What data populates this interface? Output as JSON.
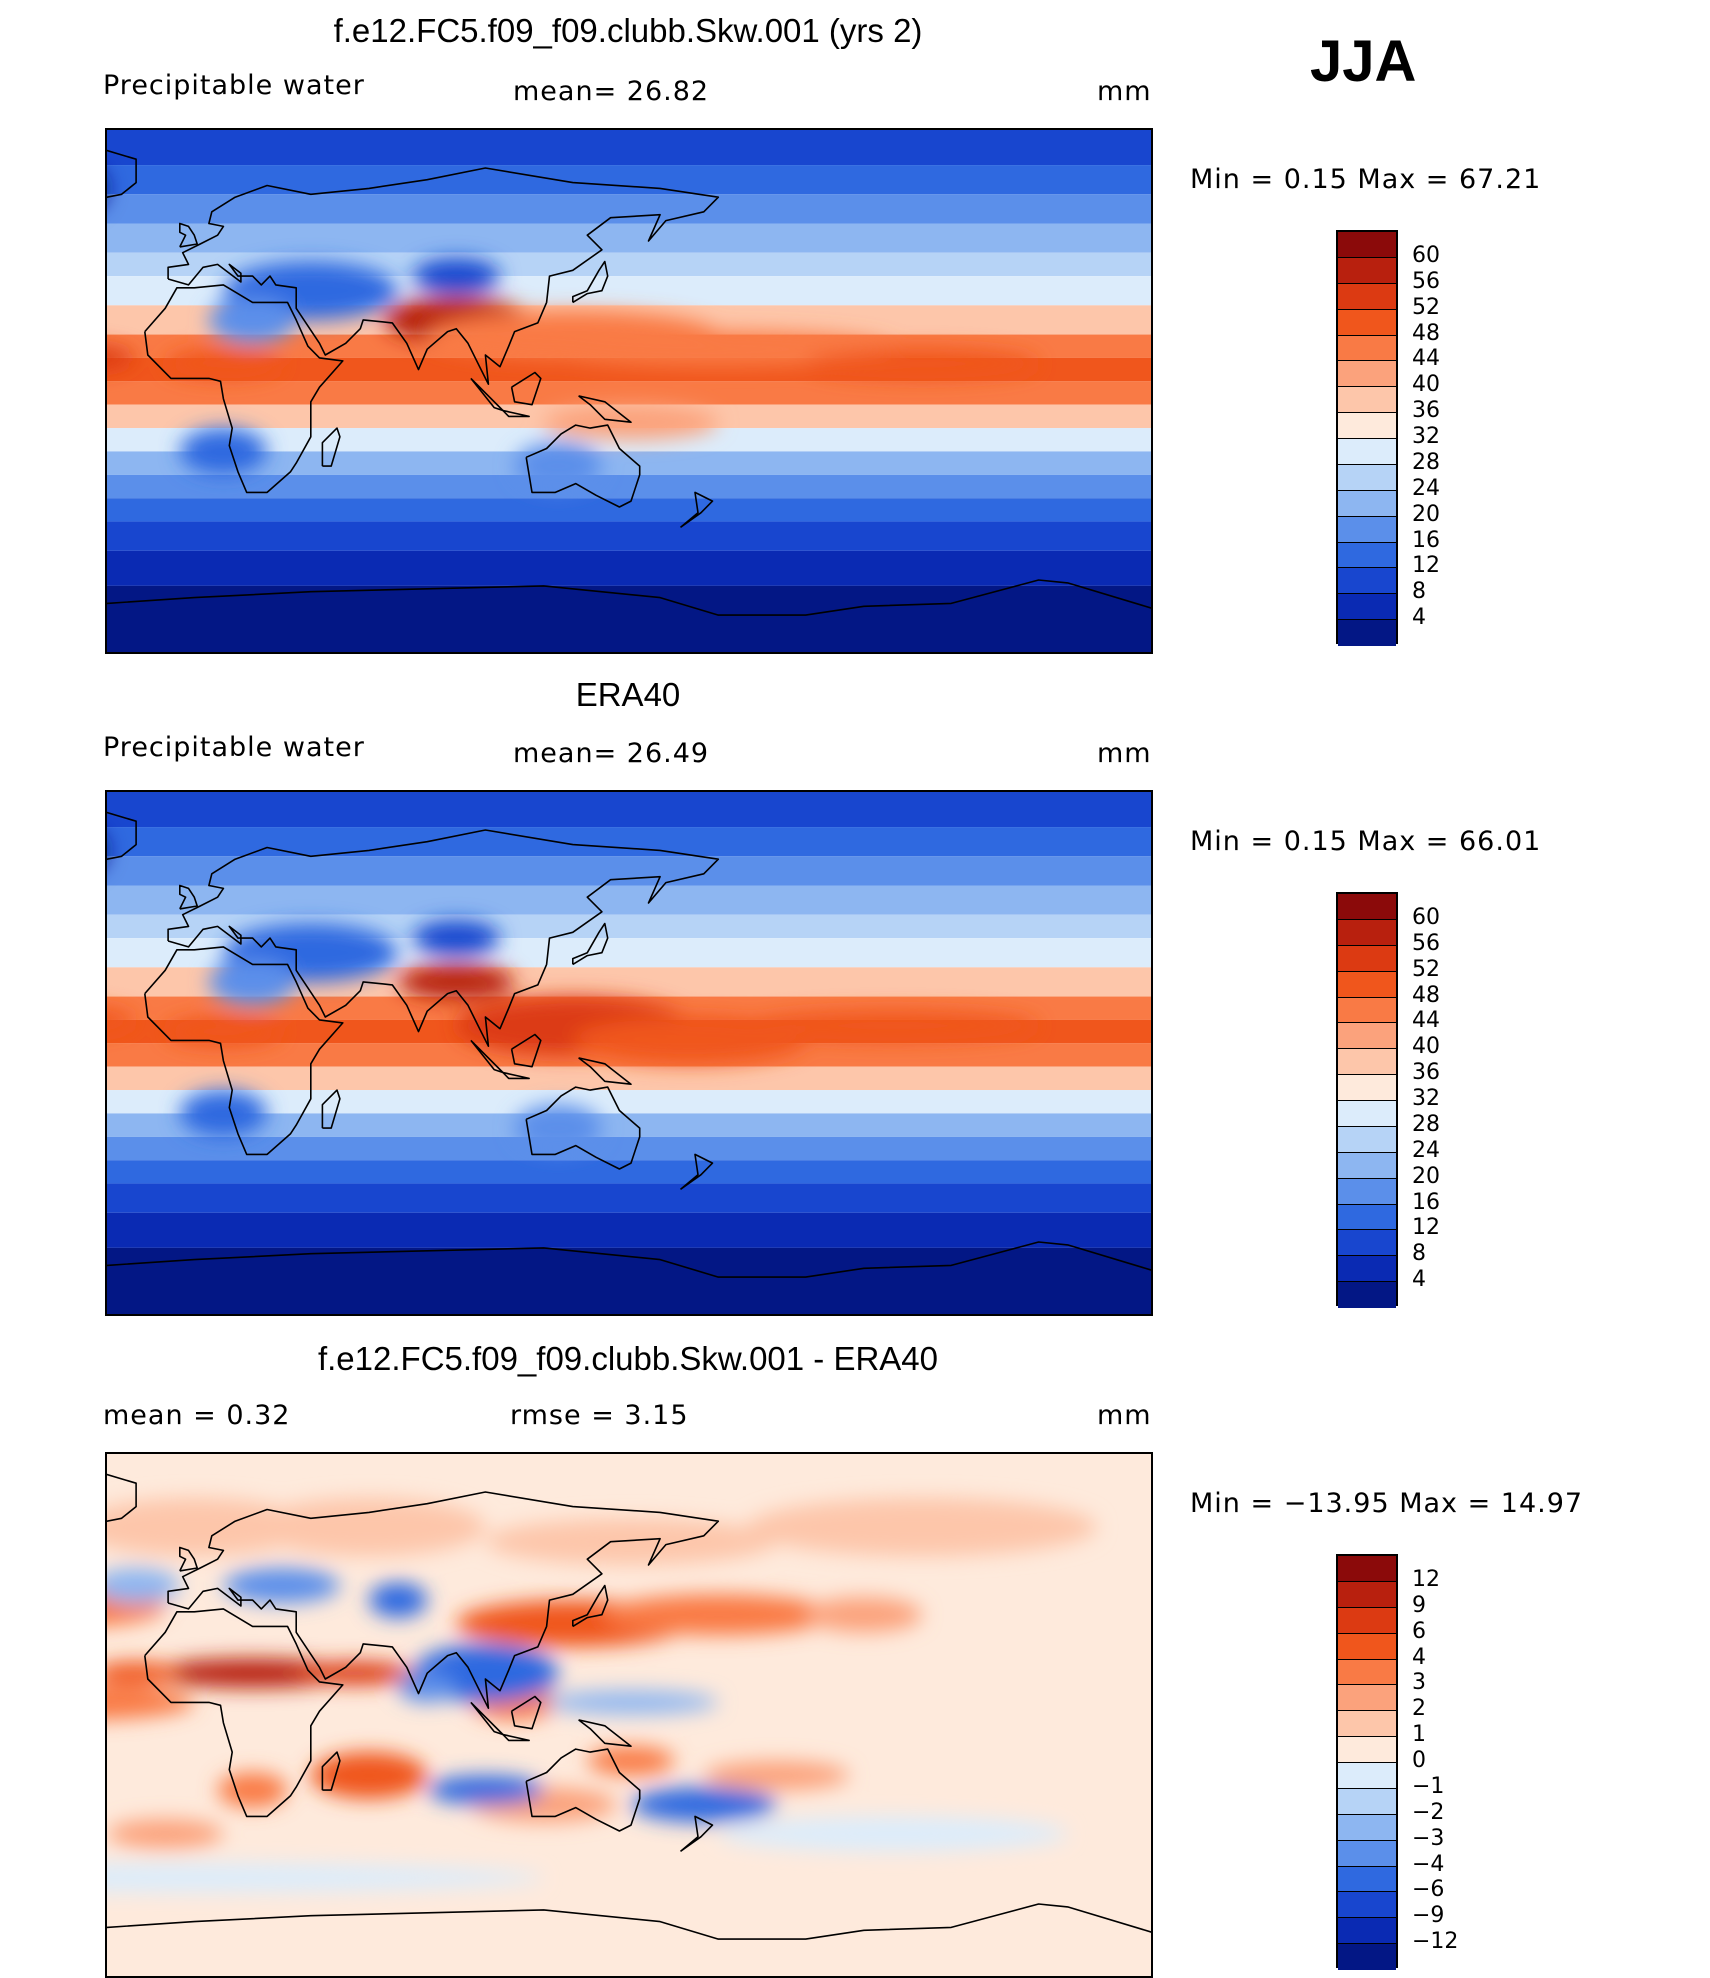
{
  "season": "JJA",
  "panels": [
    {
      "id": "model",
      "title": "f.e12.FC5.f09_f09.clubb.Skw.001 (yrs 2)",
      "left_label": "Precipitable water",
      "center_label": "mean=   26.82",
      "units": "mm",
      "minmax": "Min  =     0.15  Max  =     67.21",
      "colorbar": {
        "labels": [
          "60",
          "56",
          "52",
          "48",
          "44",
          "40",
          "36",
          "32",
          "28",
          "24",
          "20",
          "16",
          "12",
          "8",
          "4"
        ],
        "colors": [
          "#8b0a0a",
          "#b8200e",
          "#dc3a12",
          "#f0561c",
          "#f97a45",
          "#fba27c",
          "#fdc6aa",
          "#feeadc",
          "#dcecfb",
          "#b6d3f6",
          "#8db6f1",
          "#5b8fea",
          "#2f69e0",
          "#1846cf",
          "#0a2ab3",
          "#031785"
        ]
      }
    },
    {
      "id": "obs",
      "title": "ERA40",
      "left_label": "Precipitable water",
      "center_label": "mean=   26.49",
      "units": "mm",
      "minmax": "Min  =     0.15  Max  =     66.01",
      "colorbar": {
        "labels": [
          "60",
          "56",
          "52",
          "48",
          "44",
          "40",
          "36",
          "32",
          "28",
          "24",
          "20",
          "16",
          "12",
          "8",
          "4"
        ],
        "colors": [
          "#8b0a0a",
          "#b8200e",
          "#dc3a12",
          "#f0561c",
          "#f97a45",
          "#fba27c",
          "#fdc6aa",
          "#feeadc",
          "#dcecfb",
          "#b6d3f6",
          "#8db6f1",
          "#5b8fea",
          "#2f69e0",
          "#1846cf",
          "#0a2ab3",
          "#031785"
        ]
      }
    },
    {
      "id": "diff",
      "title": "f.e12.FC5.f09_f09.clubb.Skw.001 - ERA40",
      "left_label": "mean  =     0.32",
      "center_label": "rmse  =     3.15",
      "units": "mm",
      "minmax": "Min  =  −13.95  Max  =     14.97",
      "colorbar": {
        "labels": [
          "12",
          "9",
          "6",
          "4",
          "3",
          "2",
          "1",
          "0",
          "−1",
          "−2",
          "−3",
          "−4",
          "−6",
          "−9",
          "−12"
        ],
        "colors": [
          "#8b0a0a",
          "#b8200e",
          "#dc3a12",
          "#f0561c",
          "#f97a45",
          "#fba27c",
          "#fdc6aa",
          "#feeadc",
          "#dcecfb",
          "#b6d3f6",
          "#8db6f1",
          "#5b8fea",
          "#2f69e0",
          "#1846cf",
          "#0a2ab3",
          "#031785"
        ]
      }
    }
  ]
}
